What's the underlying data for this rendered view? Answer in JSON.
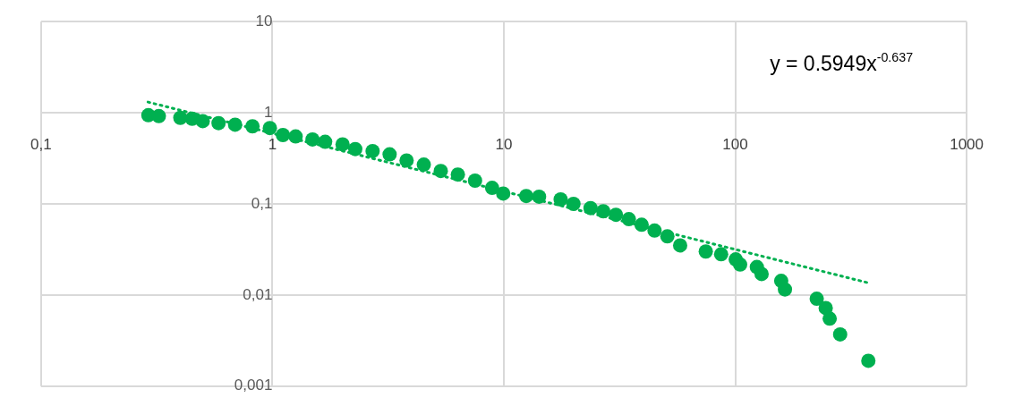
{
  "chart_data": {
    "type": "scatter",
    "log": "xy",
    "grid": true,
    "legend": false,
    "xlim": [
      0.1,
      1000
    ],
    "xticks": [
      {
        "value": 0.1,
        "label": "0,1"
      },
      1,
      10,
      100,
      1000
    ],
    "ylim": [
      0.001,
      10
    ],
    "yticks": [
      {
        "value": 0.001,
        "label": "0,001"
      },
      {
        "value": 0.01,
        "label": "0,01"
      },
      {
        "value": 0.1,
        "label": "0,1"
      },
      1,
      10
    ],
    "annotations": [
      "y = 0.5949x$^{-0.637}$"
    ],
    "series": [
      {
        "color": "#00b050",
        "marker": "circle",
        "x": [
          0.291,
          0.323,
          0.4,
          0.45,
          0.5,
          0.585,
          0.69,
          0.82,
          0.975,
          1.11,
          1.26,
          1.49,
          1.69,
          2.01,
          2.28,
          2.71,
          3.21,
          3.8,
          4.51,
          5.34,
          6.33,
          7.51,
          8.9,
          9.94,
          12.5,
          14.2,
          17.6,
          20,
          23.7,
          26.9,
          30.5,
          34.7,
          39.4,
          44.8,
          50.9,
          57.8,
          74.6,
          86.9,
          100.5,
          105,
          124,
          130,
          158,
          164,
          225,
          246,
          256,
          284,
          376
        ],
        "values": [
          0.94,
          0.92,
          0.88,
          0.86,
          0.81,
          0.77,
          0.74,
          0.71,
          0.68,
          0.57,
          0.55,
          0.51,
          0.48,
          0.45,
          0.4,
          0.38,
          0.35,
          0.3,
          0.27,
          0.23,
          0.21,
          0.18,
          0.15,
          0.13,
          0.122,
          0.12,
          0.112,
          0.1,
          0.09,
          0.083,
          0.076,
          0.068,
          0.059,
          0.051,
          0.044,
          0.035,
          0.03,
          0.028,
          0.0246,
          0.0216,
          0.0203,
          0.017,
          0.0143,
          0.0115,
          0.0091,
          0.0072,
          0.0055,
          0.0037,
          0.0019
        ]
      },
      {
        "type": "line",
        "color": "#00b050",
        "marker": "none",
        "line_style": "dotted",
        "x": [
          0.29,
          376
        ],
        "values": [
          1.31,
          0.0136
        ]
      }
    ]
  }
}
